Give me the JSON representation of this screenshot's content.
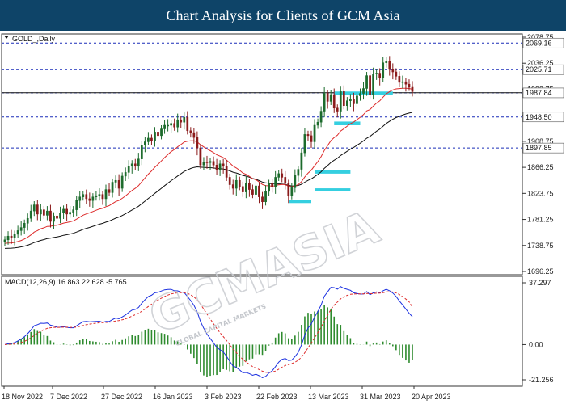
{
  "page_title": "Chart Analysis for Clients of GCM Asia",
  "symbol_label": "GOLD_,Daily",
  "watermark": {
    "brand": "GCMASIA",
    "tagline": "GLOBAL CAPITAL MARKETS"
  },
  "colors": {
    "title_bg": "#0e4468",
    "bull_candle": "#1c6b2c",
    "bear_candle": "#8a1a1a",
    "ema_fast": "#dd2a2a",
    "ema_slow": "#111111",
    "support_resistance": "#1a2db8",
    "zone": "#35cfe0",
    "macd_line": "#1a2fe0",
    "signal_line": "#dd2a2a",
    "histogram": "#2e8b2e"
  },
  "chart_data": [
    {
      "type": "candlestick",
      "title": "GOLD_,Daily",
      "x_ticks": [
        "18 Nov 2022",
        "7 Dec 2022",
        "27 Dec 2022",
        "16 Jan 2023",
        "3 Feb 2023",
        "22 Feb 2023",
        "13 Mar 2023",
        "31 Mar 2023",
        "20 Apr 2023"
      ],
      "y_ticks": [
        1696.25,
        1738.75,
        1781.25,
        1823.75,
        1866.25,
        1908.75,
        1951.25,
        1993.75,
        2036.25,
        2078.75
      ],
      "ylim": [
        1696.25,
        2078.75
      ],
      "levels": [
        2069.16,
        2025.71,
        1987.84,
        1948.5,
        1897.85
      ],
      "zones": [
        {
          "start": 27,
          "end": 38,
          "low": 1856,
          "high": 1862
        },
        {
          "start": 27,
          "end": 38,
          "low": 1827,
          "high": 1832
        },
        {
          "start": 19,
          "end": 26,
          "low": 1808,
          "high": 1813
        },
        {
          "start": 0,
          "end": 8,
          "low": 1935,
          "high": 1941
        },
        {
          "start": 0,
          "end": 18,
          "low": 1984,
          "high": 1990
        }
      ],
      "closes": [
        1748,
        1754,
        1751,
        1757,
        1763,
        1768,
        1775,
        1783,
        1795,
        1805,
        1790,
        1797,
        1788,
        1795,
        1778,
        1787,
        1783,
        1792,
        1798,
        1790,
        1793,
        1797,
        1812,
        1818,
        1822,
        1815,
        1812,
        1818,
        1820,
        1822,
        1815,
        1830,
        1825,
        1842,
        1845,
        1832,
        1852,
        1858,
        1868,
        1872,
        1868,
        1880,
        1903,
        1908,
        1914,
        1910,
        1924,
        1918,
        1929,
        1935,
        1935,
        1938,
        1932,
        1944,
        1940,
        1948,
        1926,
        1923,
        1915,
        1898,
        1870,
        1875,
        1874,
        1876,
        1870,
        1862,
        1872,
        1868,
        1850,
        1838,
        1832,
        1845,
        1835,
        1826,
        1841,
        1830,
        1822,
        1836,
        1818,
        1810,
        1827,
        1840,
        1835,
        1850,
        1856,
        1850,
        1840,
        1820,
        1833,
        1853,
        1863,
        1890,
        1920,
        1918,
        1908,
        1935,
        1940,
        1958,
        1987,
        1974,
        1985,
        1963,
        1958,
        1990,
        1967,
        1975,
        1978,
        1970,
        1983,
        1987,
        1995,
        2016,
        1985,
        2019,
        2020,
        2012,
        2037,
        2040,
        2026,
        2022,
        2015,
        2005,
        2006,
        2002,
        1997,
        1990
      ],
      "ema_fast_end": 1987,
      "ema_slow_end": 1948
    },
    {
      "type": "macd",
      "title": "MACD(12,26,9) 16.863 22.628 -5.765",
      "params": "12,26,9",
      "macd_value": 16.863,
      "signal_value": 22.628,
      "histogram_value": -5.765,
      "y_ticks": [
        37.297,
        0.0,
        -21.256
      ],
      "ylim": [
        -21.256,
        37.297
      ]
    }
  ]
}
